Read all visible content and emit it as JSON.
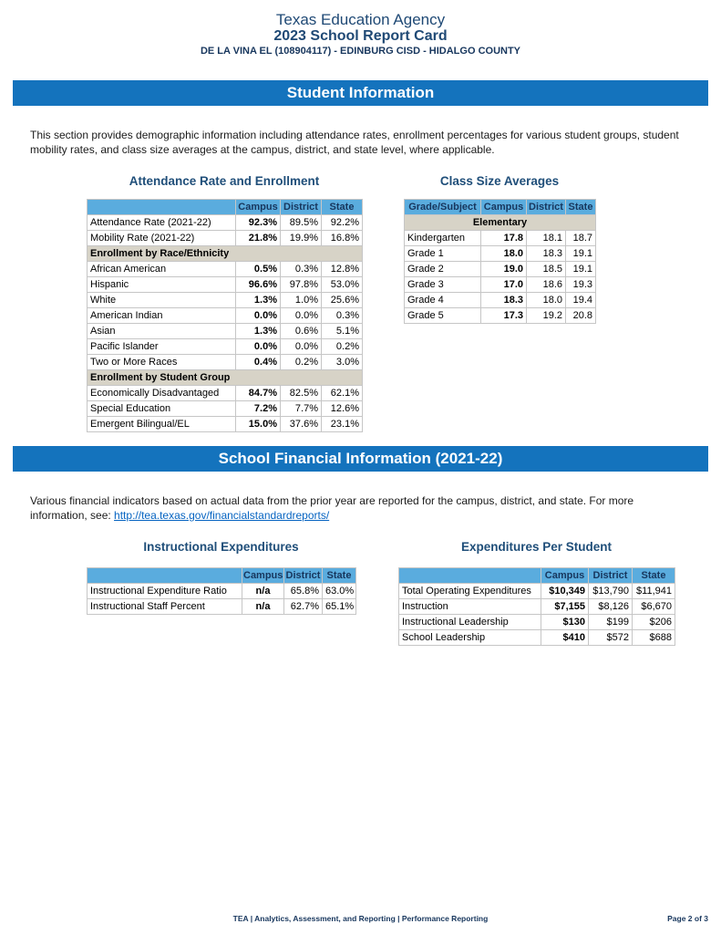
{
  "header": {
    "agency": "Texas Education Agency",
    "title": "2023 School Report Card",
    "campus_line": "DE LA VINA EL (108904117) - EDINBURG CISD - HIDALGO COUNTY"
  },
  "colors": {
    "banner_blue": "#1473BD",
    "table_header_blue": "#5AACDE",
    "section_row_tan": "#D7D3C7",
    "title_navy": "#1F4E79",
    "link_blue": "#0563C1",
    "footer_navy": "#17365D"
  },
  "sections": {
    "student": {
      "banner": "Student Information",
      "intro": "This section provides demographic information including attendance rates, enrollment percentages for various student groups, student mobility rates, and class size averages at the campus, district, and state level, where applicable."
    },
    "financial": {
      "banner": "School Financial Information (2021-22)",
      "intro_prefix": "Various financial indicators based on actual data from the prior year are reported for the campus, district, and state. For more information, see: ",
      "link": "http://tea.texas.gov/financialstandardreports/"
    }
  },
  "tables": {
    "attendance": {
      "title": "Attendance Rate and Enrollment",
      "columns": [
        "",
        "Campus",
        "District",
        "State"
      ],
      "rows": [
        {
          "label": "Attendance Rate (2021-22)",
          "campus": "92.3%",
          "district": "89.5%",
          "state": "92.2%"
        },
        {
          "label": "Mobility Rate (2021-22)",
          "campus": "21.8%",
          "district": "19.9%",
          "state": "16.8%"
        },
        {
          "section": "Enrollment by Race/Ethnicity"
        },
        {
          "label": "African American",
          "campus": "0.5%",
          "district": "0.3%",
          "state": "12.8%"
        },
        {
          "label": "Hispanic",
          "campus": "96.6%",
          "district": "97.8%",
          "state": "53.0%"
        },
        {
          "label": "White",
          "campus": "1.3%",
          "district": "1.0%",
          "state": "25.6%"
        },
        {
          "label": "American Indian",
          "campus": "0.0%",
          "district": "0.0%",
          "state": "0.3%"
        },
        {
          "label": "Asian",
          "campus": "1.3%",
          "district": "0.6%",
          "state": "5.1%"
        },
        {
          "label": "Pacific Islander",
          "campus": "0.0%",
          "district": "0.0%",
          "state": "0.2%"
        },
        {
          "label": "Two or More Races",
          "campus": "0.4%",
          "district": "0.2%",
          "state": "3.0%"
        },
        {
          "section": "Enrollment by Student Group"
        },
        {
          "label": "Economically Disadvantaged",
          "campus": "84.7%",
          "district": "82.5%",
          "state": "62.1%"
        },
        {
          "label": "Special Education",
          "campus": "7.2%",
          "district": "7.7%",
          "state": "12.6%"
        },
        {
          "label": "Emergent Bilingual/EL",
          "campus": "15.0%",
          "district": "37.6%",
          "state": "23.1%"
        }
      ]
    },
    "classsize": {
      "title": "Class Size Averages",
      "columns": [
        "Grade/Subject",
        "Campus",
        "District",
        "State"
      ],
      "rows": [
        {
          "section": "Elementary"
        },
        {
          "label": "Kindergarten",
          "campus": "17.8",
          "district": "18.1",
          "state": "18.7"
        },
        {
          "label": "Grade 1",
          "campus": "18.0",
          "district": "18.3",
          "state": "19.1"
        },
        {
          "label": "Grade 2",
          "campus": "19.0",
          "district": "18.5",
          "state": "19.1"
        },
        {
          "label": "Grade 3",
          "campus": "17.0",
          "district": "18.6",
          "state": "19.3"
        },
        {
          "label": "Grade 4",
          "campus": "18.3",
          "district": "18.0",
          "state": "19.4"
        },
        {
          "label": "Grade 5",
          "campus": "17.3",
          "district": "19.2",
          "state": "20.8"
        }
      ]
    },
    "instr": {
      "title": "Instructional Expenditures",
      "columns": [
        "",
        "Campus",
        "District",
        "State"
      ],
      "rows": [
        {
          "label": "Instructional Expenditure Ratio",
          "campus": "n/a",
          "district": "65.8%",
          "state": "63.0%"
        },
        {
          "label": "Instructional Staff Percent",
          "campus": "n/a",
          "district": "62.7%",
          "state": "65.1%"
        }
      ]
    },
    "exp": {
      "title": "Expenditures Per Student",
      "columns": [
        "",
        "Campus",
        "District",
        "State"
      ],
      "rows": [
        {
          "label": "Total Operating Expenditures",
          "campus": "$10,349",
          "district": "$13,790",
          "state": "$11,941"
        },
        {
          "label": "Instruction",
          "campus": "$7,155",
          "district": "$8,126",
          "state": "$6,670"
        },
        {
          "label": "Instructional Leadership",
          "campus": "$130",
          "district": "$199",
          "state": "$206"
        },
        {
          "label": "School Leadership",
          "campus": "$410",
          "district": "$572",
          "state": "$688"
        }
      ]
    }
  },
  "footer": {
    "center": "TEA | Analytics, Assessment, and Reporting | Performance Reporting",
    "right": "Page 2 of 3"
  }
}
